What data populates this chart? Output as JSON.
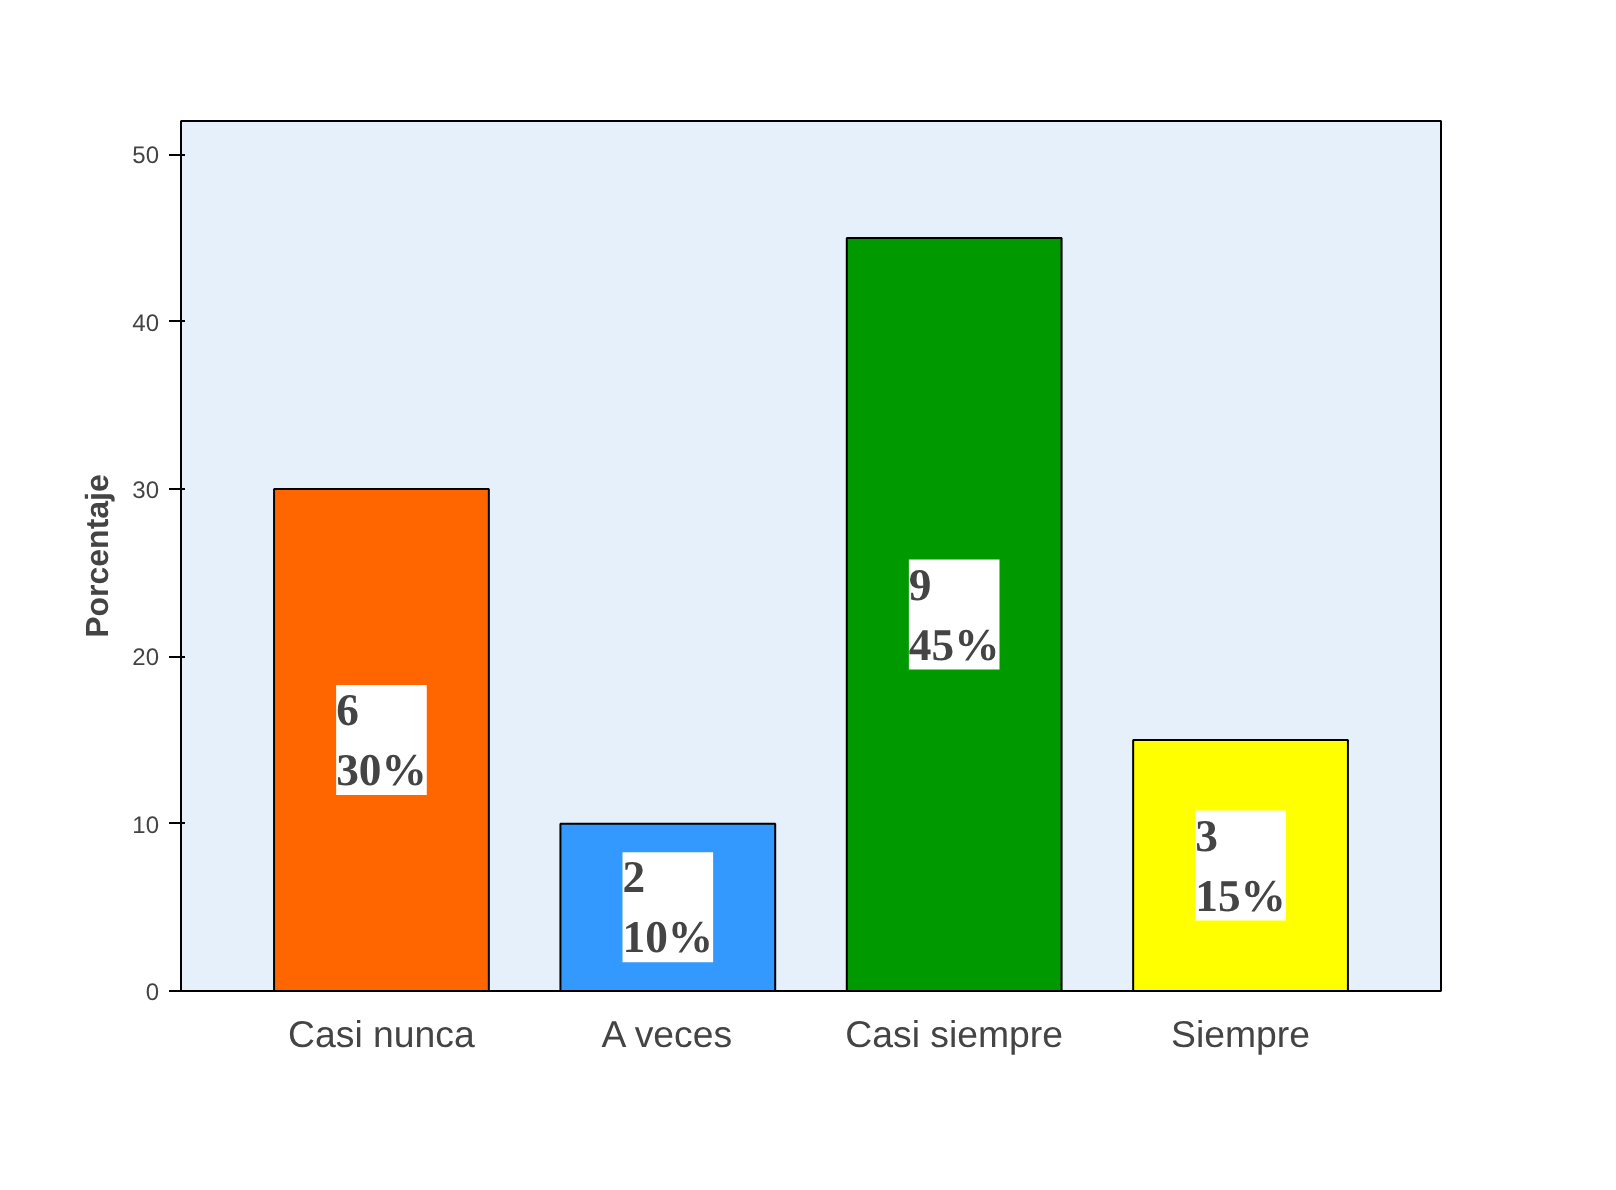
{
  "chart_data": {
    "type": "bar",
    "ylabel": "Porcentaje",
    "categories": [
      "Casi nunca",
      "A veces",
      "Casi siempre",
      "Siempre"
    ],
    "values": [
      30,
      10,
      45,
      15
    ],
    "colors": [
      "#ff6600",
      "#3399ff",
      "#009900",
      "#ffff00"
    ],
    "value_labels": [
      "6\n30%",
      "2\n10%",
      "9\n45%",
      "3\n15%"
    ],
    "ylim": [
      0,
      52
    ],
    "yticks": [
      0,
      10,
      20,
      30,
      40,
      50
    ],
    "grid": false
  }
}
